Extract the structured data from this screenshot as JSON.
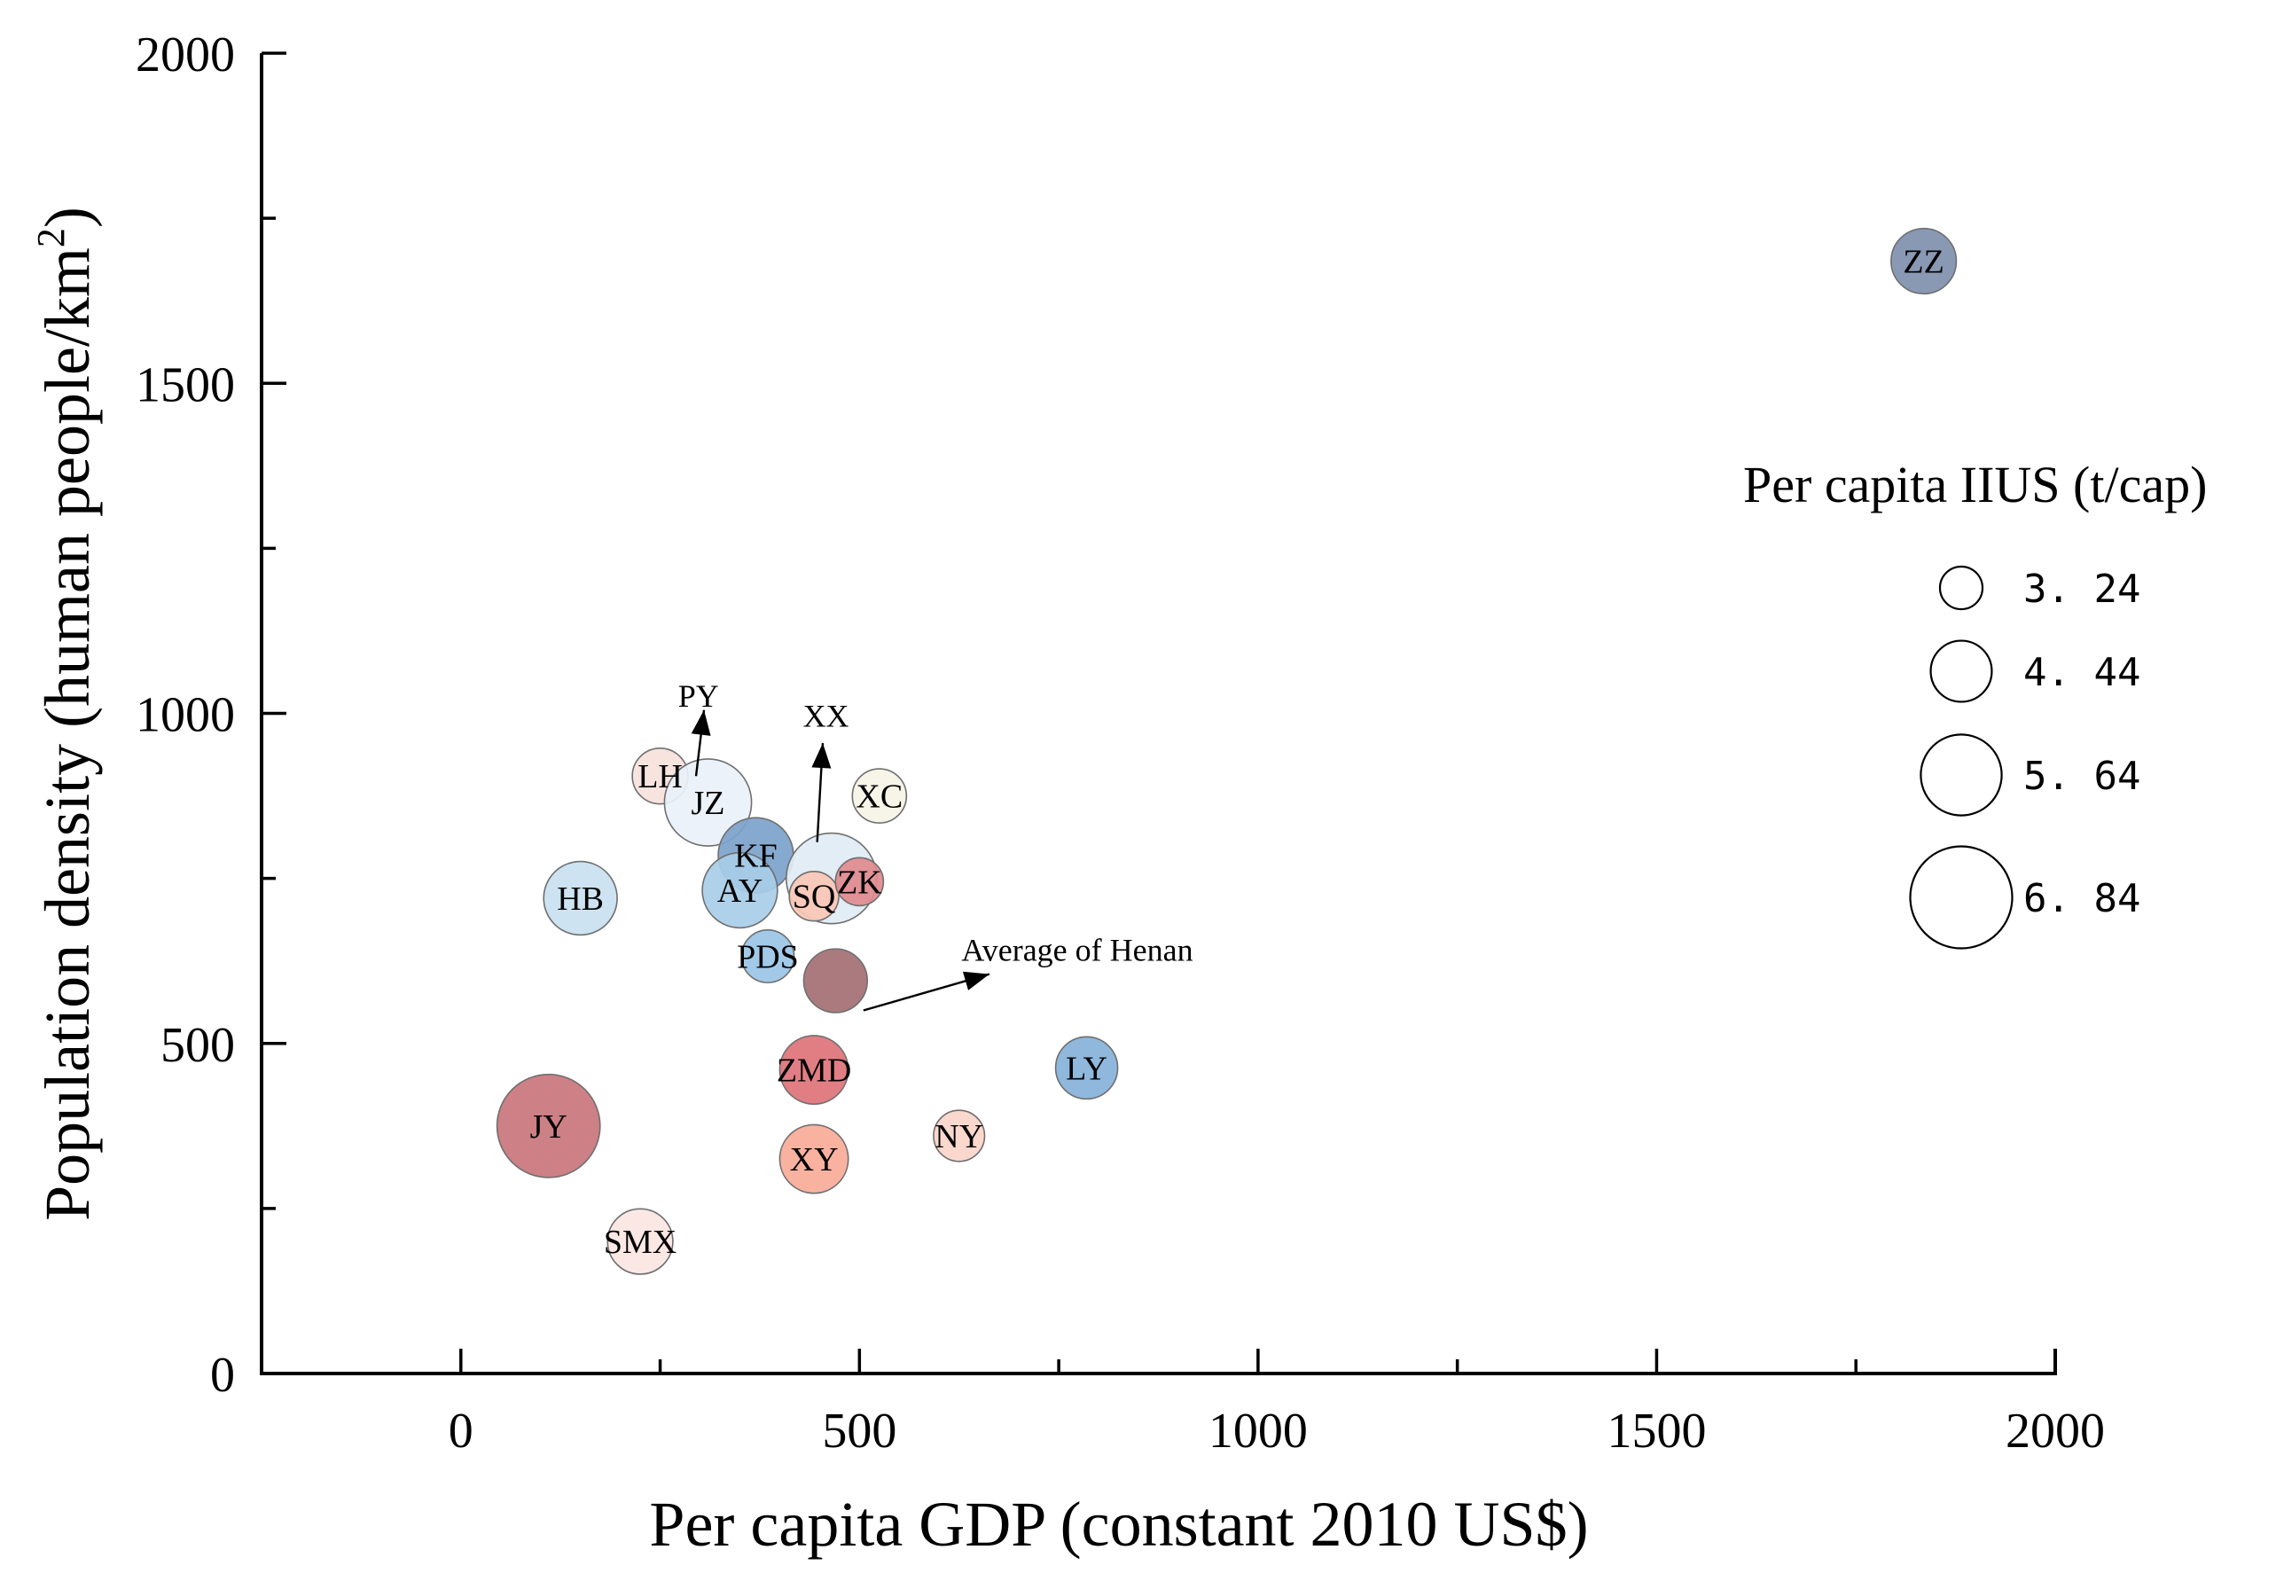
{
  "chart_data": {
    "type": "scatter",
    "subtype": "bubble",
    "xlabel": "Per capita GDP (constant 2010 US$)",
    "ylabel_main": "Population density (human people/km",
    "ylabel_sup": "2",
    "ylabel_close": ")",
    "xlim": [
      -250,
      2000
    ],
    "ylim": [
      0,
      2000
    ],
    "x_ticks": [
      0,
      500,
      1000,
      1500,
      2000
    ],
    "x_tick_labels": [
      "0",
      "500",
      "1000",
      "1500",
      "2000"
    ],
    "x_minor_ticks": [
      -250,
      250,
      750,
      1250,
      1750
    ],
    "y_ticks": [
      0,
      500,
      1000,
      1500,
      2000
    ],
    "y_tick_labels": [
      "0",
      "500",
      "1000",
      "1500",
      "2000"
    ],
    "y_minor_ticks": [
      250,
      750,
      1250,
      1750
    ],
    "legend": {
      "title": "Per capita IIUS (t/cap)",
      "placement": "right",
      "entries": [
        {
          "label": "3. 24",
          "value": 3.24
        },
        {
          "label": "4. 44",
          "value": 4.44
        },
        {
          "label": "5. 64",
          "value": 5.64
        },
        {
          "label": "6. 84",
          "value": 6.84
        }
      ]
    },
    "points": [
      {
        "id": "zz",
        "label": "ZZ",
        "x": 1835,
        "y": 1685,
        "size": 4.7,
        "color": "#7f90ae"
      },
      {
        "id": "jy",
        "label": "JY",
        "x": 110,
        "y": 375,
        "size": 6.9,
        "color": "#c9757b"
      },
      {
        "id": "smx",
        "label": "SMX",
        "x": 225,
        "y": 200,
        "size": 4.7,
        "color": "#fbe6e3"
      },
      {
        "id": "hb",
        "label": "HB",
        "x": 150,
        "y": 720,
        "size": 5.2,
        "color": "#c9e1f0"
      },
      {
        "id": "lh",
        "label": "LH",
        "x": 250,
        "y": 905,
        "size": 4.1,
        "color": "#f7e2dc"
      },
      {
        "id": "jz",
        "label": "JZ",
        "x": 310,
        "y": 865,
        "size": 6.0,
        "color": "#e9f1fa"
      },
      {
        "id": "kf",
        "label": "KF",
        "x": 370,
        "y": 785,
        "size": 5.3,
        "color": "#7ca2cb"
      },
      {
        "id": "ay",
        "label": "AY",
        "x": 350,
        "y": 732,
        "size": 5.3,
        "color": "#a8cde8"
      },
      {
        "id": "xx",
        "label": "",
        "x": 465,
        "y": 750,
        "size": 6.2,
        "color": "#e1ebf4"
      },
      {
        "id": "sq",
        "label": "SQ",
        "x": 443,
        "y": 723,
        "size": 3.7,
        "color": "#f8c7b5"
      },
      {
        "id": "zk",
        "label": "ZK",
        "x": 500,
        "y": 745,
        "size": 3.6,
        "color": "#e08a8e"
      },
      {
        "id": "xc",
        "label": "XC",
        "x": 525,
        "y": 875,
        "size": 4.0,
        "color": "#f6f4e6"
      },
      {
        "id": "pds",
        "label": "PDS",
        "x": 385,
        "y": 632,
        "size": 3.9,
        "color": "#9ac6e6"
      },
      {
        "id": "avg",
        "label": "",
        "x": 470,
        "y": 595,
        "size": 4.6,
        "color": "#a46f74"
      },
      {
        "id": "zmd",
        "label": "ZMD",
        "x": 443,
        "y": 460,
        "size": 4.9,
        "color": "#de7379"
      },
      {
        "id": "xy",
        "label": "XY",
        "x": 443,
        "y": 325,
        "size": 4.9,
        "color": "#f8ab98"
      },
      {
        "id": "ny",
        "label": "NY",
        "x": 625,
        "y": 360,
        "size": 3.8,
        "color": "#fbd5c9"
      },
      {
        "id": "ly",
        "label": "LY",
        "x": 785,
        "y": 463,
        "size": 4.5,
        "color": "#86b2d9"
      }
    ],
    "annotations": [
      {
        "id": "py",
        "label": "PY",
        "text_x": 298,
        "text_y": 1010,
        "from_x": 295,
        "from_y": 905,
        "to_x": 305,
        "to_y": 1005
      },
      {
        "id": "xx",
        "label": "XX",
        "text_x": 458,
        "text_y": 980,
        "from_x": 447,
        "from_y": 805,
        "to_x": 454,
        "to_y": 955
      },
      {
        "id": "avg-henan",
        "label": "Average of Henan",
        "text_x": 628,
        "text_y": 625,
        "from_x": 505,
        "from_y": 550,
        "to_x": 663,
        "to_y": 605
      }
    ]
  }
}
